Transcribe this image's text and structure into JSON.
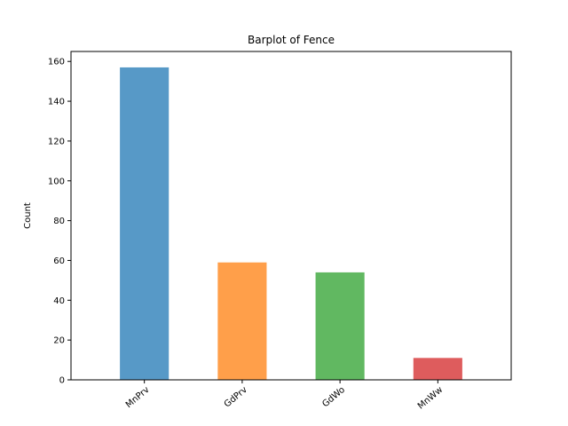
{
  "chart_data": {
    "type": "bar",
    "title": "Barplot of Fence",
    "xlabel": "",
    "ylabel": "Count",
    "categories": [
      "MnPrv",
      "GdPrv",
      "GdWo",
      "MnWw"
    ],
    "values": [
      157,
      59,
      54,
      11
    ],
    "colors": [
      "#5799c7",
      "#ff9f4a",
      "#61b861",
      "#de5c5d"
    ],
    "ylim": [
      0,
      165
    ],
    "yticks": [
      0,
      20,
      40,
      60,
      80,
      100,
      120,
      140,
      160
    ],
    "grid": false,
    "legend": "none"
  }
}
